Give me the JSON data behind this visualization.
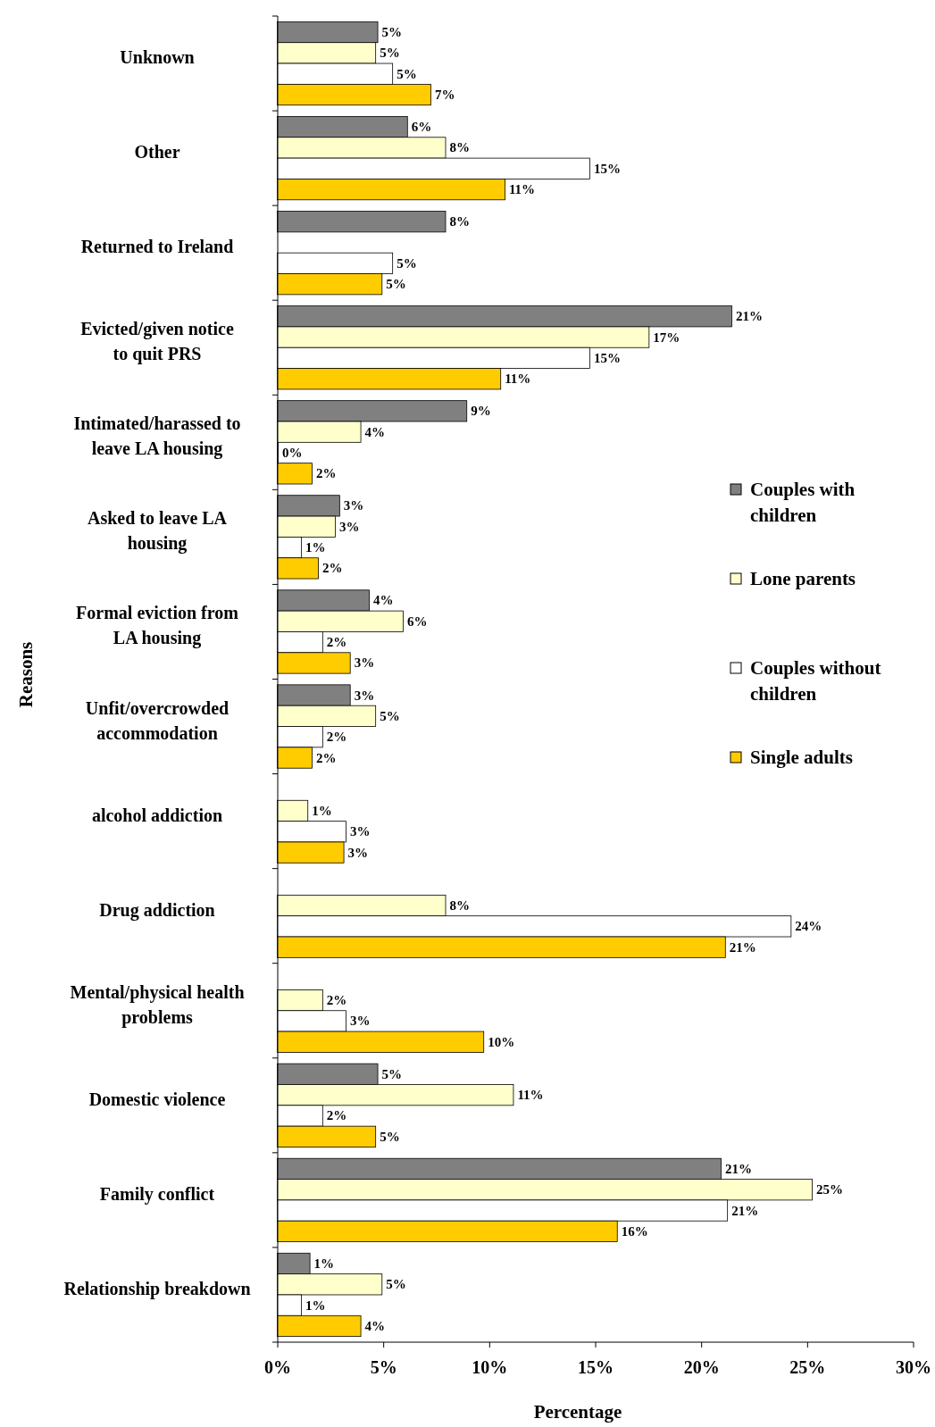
{
  "chart_data": {
    "type": "bar",
    "orientation": "horizontal",
    "xlabel": "Percentage",
    "ylabel": "Reasons",
    "categories": [
      "Unknown",
      "Other",
      "Returned to Ireland",
      "Evicted/given notice to quit PRS",
      "Intimated/harassed to leave LA housing",
      "Asked to leave LA housing",
      "Formal eviction from LA housing",
      "Unfit/overcrowded accommodation",
      "alcohol addiction",
      "Drug addiction",
      "Mental/physical health problems",
      "Domestic violence",
      "Family conflict",
      "Relationship breakdown"
    ],
    "series": [
      {
        "name": "Couples with children",
        "color": "#808080",
        "values": [
          4.7,
          6.1,
          7.9,
          21.4,
          8.9,
          2.9,
          4.3,
          3.4,
          null,
          null,
          null,
          4.7,
          20.9,
          1.5
        ],
        "value_labels": [
          "5%",
          "6%",
          "8%",
          "21%",
          "9%",
          "3%",
          "4%",
          "3%",
          null,
          null,
          null,
          "5%",
          "21%",
          "1%"
        ]
      },
      {
        "name": "Lone parents",
        "color": "#ffffcc",
        "values": [
          4.6,
          7.9,
          null,
          17.5,
          3.9,
          2.7,
          5.9,
          4.6,
          1.4,
          7.9,
          2.1,
          11.1,
          25.2,
          4.9
        ],
        "value_labels": [
          "5%",
          "8%",
          null,
          "17%",
          "4%",
          "3%",
          "6%",
          "5%",
          "1%",
          "8%",
          "2%",
          "11%",
          "25%",
          "5%"
        ]
      },
      {
        "name": "Couples without children",
        "color": "#ffffff",
        "values": [
          5.4,
          14.7,
          5.4,
          14.7,
          0,
          1.1,
          2.1,
          2.1,
          3.2,
          24.2,
          3.2,
          2.1,
          21.2,
          1.1
        ],
        "value_labels": [
          "5%",
          "15%",
          "5%",
          "15%",
          "0%",
          "1%",
          "2%",
          "2%",
          "3%",
          "24%",
          "3%",
          "2%",
          "21%",
          "1%"
        ]
      },
      {
        "name": "Single adults",
        "color": "#ffcc00",
        "values": [
          7.2,
          10.7,
          4.9,
          10.5,
          1.6,
          1.9,
          3.4,
          1.6,
          3.1,
          21.1,
          9.7,
          4.6,
          16.0,
          3.9
        ],
        "value_labels": [
          "7%",
          "11%",
          "5%",
          "11%",
          "2%",
          "2%",
          "3%",
          "2%",
          "3%",
          "21%",
          "10%",
          "5%",
          "16%",
          "4%"
        ]
      }
    ],
    "xlim": [
      0,
      30
    ],
    "xticks": [
      {
        "value": 0,
        "label": "0%"
      },
      {
        "value": 5,
        "label": "5%"
      },
      {
        "value": 10,
        "label": "10%"
      },
      {
        "value": 15,
        "label": "15%"
      },
      {
        "value": 20,
        "label": "20%"
      },
      {
        "value": 25,
        "label": "25%"
      },
      {
        "value": 30,
        "label": "30%"
      }
    ],
    "grid": false,
    "legend": "right"
  }
}
